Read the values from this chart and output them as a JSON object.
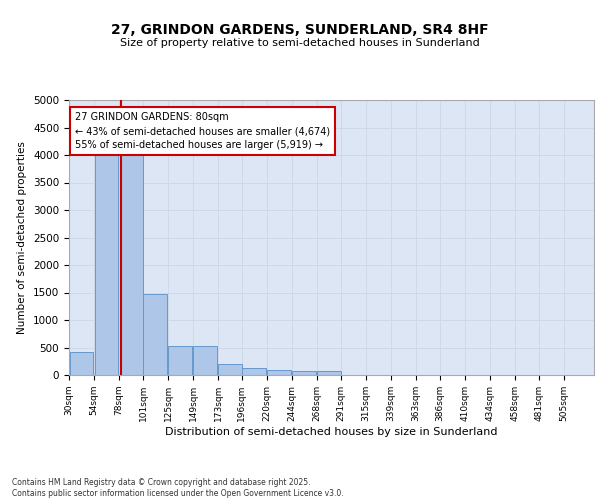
{
  "title_line1": "27, GRINDON GARDENS, SUNDERLAND, SR4 8HF",
  "title_line2": "Size of property relative to semi-detached houses in Sunderland",
  "xlabel": "Distribution of semi-detached houses by size in Sunderland",
  "ylabel": "Number of semi-detached properties",
  "annotation_line1": "27 GRINDON GARDENS: 80sqm",
  "annotation_line2": "← 43% of semi-detached houses are smaller (4,674)",
  "annotation_line3": "55% of semi-detached houses are larger (5,919) →",
  "property_size_sqm": 80,
  "bin_starts": [
    30,
    54,
    78,
    101,
    125,
    149,
    173,
    196,
    220,
    244,
    268,
    291,
    315,
    339,
    363,
    386,
    410,
    434,
    458,
    481
  ],
  "bin_labels": [
    "30sqm",
    "54sqm",
    "78sqm",
    "101sqm",
    "125sqm",
    "149sqm",
    "173sqm",
    "196sqm",
    "220sqm",
    "244sqm",
    "268sqm",
    "291sqm",
    "315sqm",
    "339sqm",
    "363sqm",
    "386sqm",
    "410sqm",
    "434sqm",
    "458sqm",
    "481sqm",
    "505sqm"
  ],
  "bar_heights": [
    420,
    4020,
    4040,
    1470,
    530,
    530,
    200,
    130,
    100,
    75,
    65,
    0,
    0,
    0,
    0,
    0,
    0,
    0,
    0,
    0
  ],
  "bar_color": "#aec6e8",
  "bar_edge_color": "#6699cc",
  "red_line_color": "#cc0000",
  "annotation_box_edge_color": "#cc0000",
  "grid_color": "#cdd8ea",
  "background_color": "#dce6f5",
  "ylim": [
    0,
    5000
  ],
  "yticks": [
    0,
    500,
    1000,
    1500,
    2000,
    2500,
    3000,
    3500,
    4000,
    4500,
    5000
  ],
  "footnote_line1": "Contains HM Land Registry data © Crown copyright and database right 2025.",
  "footnote_line2": "Contains public sector information licensed under the Open Government Licence v3.0."
}
